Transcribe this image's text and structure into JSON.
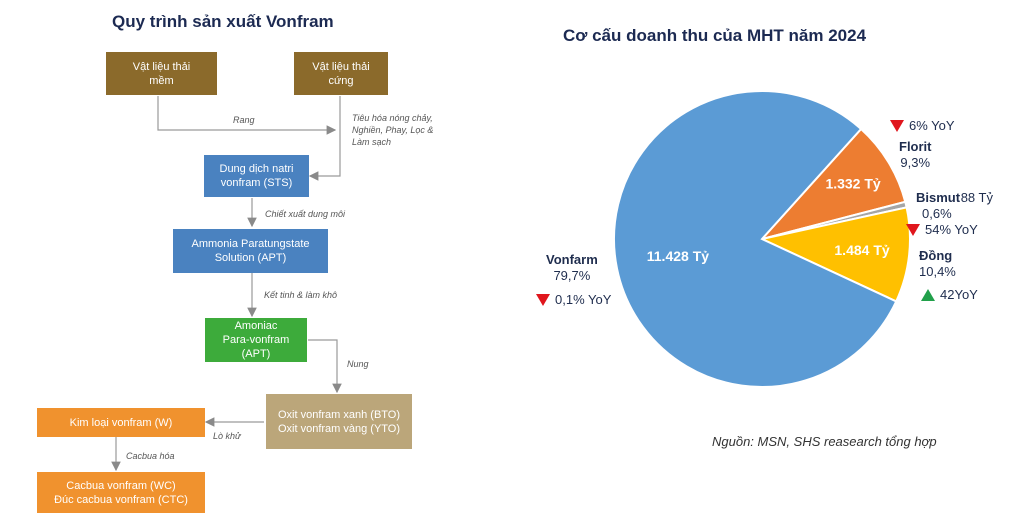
{
  "flow": {
    "title": "Quy trình sản xuất Vonfram",
    "boxes": {
      "soft_waste": "Vật liệu thải\nmềm",
      "hard_waste": "Vật liệu thải\ncứng",
      "sts": "Dung dịch natri\nvonfram (STS)",
      "apt_solution": "Ammonia Paratungstate\nSolution (APT)",
      "apt": "Amoniac\nPara-vonfram\n(APT)",
      "oxide": "Oxit vonfram xanh (BTO)\nOxit vonfram vàng (YTO)",
      "metal": "Kim loại vonfram (W)",
      "carbide": "Cacbua vonfram (WC)\nĐúc cacbua vonfram (CTC)"
    },
    "notes": {
      "rang": "Rang",
      "digest": "Tiêu hóa nóng chảy,\nNghiền, Phay, Lọc &\nLàm sạch",
      "extract": "Chiết xuất dung môi",
      "crystal": "Kết tinh & làm khô",
      "nung": "Nung",
      "furnace": "Lò khử",
      "carburize": "Cacbua hóa"
    },
    "colors": {
      "waste": "#8b6a2b",
      "blue": "#4a82c0",
      "green": "#3dab3b",
      "tan": "#bba67a",
      "orange": "#f0922e"
    }
  },
  "chart_data": {
    "type": "pie",
    "title": "Cơ cấu doanh thu của MHT năm 2024",
    "slices": [
      {
        "name": "Vonfarm",
        "value": 11428,
        "label": "11.428 Tỷ",
        "percent": "79,7%",
        "yoy": "0,1% YoY",
        "yoy_direction": "down",
        "color": "#5b9bd5"
      },
      {
        "name": "Florit",
        "value": 1332,
        "label": "1.332 Tỷ",
        "percent": "9,3%",
        "yoy": "6% YoY",
        "yoy_direction": "down",
        "color": "#ed7d31"
      },
      {
        "name": "Bismut",
        "value": 88,
        "label": "88 Tỷ",
        "percent": "0,6%",
        "yoy": "54% YoY",
        "yoy_direction": "down",
        "color": "#a5a5a5"
      },
      {
        "name": "Đồng",
        "value": 1484,
        "label": "1.484 Tỷ",
        "percent": "10,4%",
        "yoy": "42YoY",
        "yoy_direction": "up",
        "color": "#ffc000"
      }
    ]
  },
  "source": "Nguồn: MSN, SHS reasearch tổng hợp"
}
